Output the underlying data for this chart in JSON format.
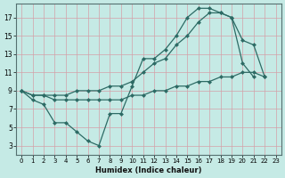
{
  "xlabel": "Humidex (Indice chaleur)",
  "bg_color": "#c5eae5",
  "line_color": "#2d6b65",
  "grid_color": "#d4a0a8",
  "xlim": [
    -0.5,
    23.5
  ],
  "ylim": [
    2.0,
    18.5
  ],
  "xticks": [
    0,
    1,
    2,
    3,
    4,
    5,
    6,
    7,
    8,
    9,
    10,
    11,
    12,
    13,
    14,
    15,
    16,
    17,
    18,
    19,
    20,
    21,
    22,
    23
  ],
  "yticks": [
    3,
    5,
    7,
    9,
    11,
    13,
    15,
    17
  ],
  "line1_x": [
    0,
    1,
    2,
    3,
    4,
    5,
    6,
    7,
    8,
    9,
    10,
    11,
    12,
    13,
    14,
    15,
    16,
    17,
    18,
    19,
    20,
    21
  ],
  "line1_y": [
    9,
    8,
    7.5,
    5.5,
    5.5,
    4.5,
    3.5,
    3.0,
    6.5,
    6.5,
    9.5,
    12.5,
    12.5,
    13.5,
    15.0,
    17.0,
    18.0,
    18.0,
    17.5,
    17.0,
    12.0,
    10.5
  ],
  "line2_x": [
    0,
    1,
    2,
    3,
    4,
    5,
    6,
    7,
    8,
    9,
    10,
    11,
    12,
    13,
    14,
    15,
    16,
    17,
    18,
    19,
    20,
    21,
    22
  ],
  "line2_y": [
    9,
    8.5,
    8.5,
    8.5,
    8.5,
    9.0,
    9.0,
    9.0,
    9.5,
    9.5,
    10.0,
    11.0,
    12.0,
    12.5,
    14.0,
    15.0,
    16.5,
    17.5,
    17.5,
    17.0,
    14.5,
    14.0,
    10.5
  ],
  "line3_x": [
    0,
    1,
    2,
    3,
    4,
    5,
    6,
    7,
    8,
    9,
    10,
    11,
    12,
    13,
    14,
    15,
    16,
    17,
    18,
    19,
    20,
    21,
    22
  ],
  "line3_y": [
    9,
    8.5,
    8.5,
    8.0,
    8.0,
    8.0,
    8.0,
    8.0,
    8.0,
    8.0,
    8.5,
    8.5,
    9.0,
    9.0,
    9.5,
    9.5,
    10.0,
    10.0,
    10.5,
    10.5,
    11.0,
    11.0,
    10.5
  ]
}
